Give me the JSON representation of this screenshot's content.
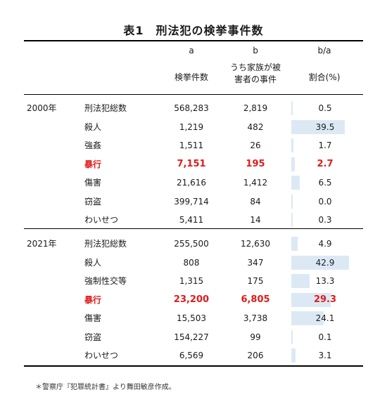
{
  "title": "表1　刑法犯の検挙事件数",
  "headers": {
    "col_a_letter": "a",
    "col_b_letter": "b",
    "col_ratio_letter": "b/a",
    "col_a_label": "検挙件数",
    "col_b_label_1": "うち家族が被",
    "col_b_label_2": "害者の事件",
    "col_ratio_label": "割合(%)"
  },
  "colors": {
    "bar": "#dce9f5",
    "highlight": "#e21a1a"
  },
  "groups": [
    {
      "year": "2000年",
      "rows": [
        {
          "label": "刑法犯総数",
          "a": "568,283",
          "b": "2,819",
          "ratio": 0.5,
          "ratio_text": "0.5",
          "highlight": false
        },
        {
          "label": "殺人",
          "a": "1,219",
          "b": "482",
          "ratio": 39.5,
          "ratio_text": "39.5",
          "highlight": false
        },
        {
          "label": "強姦",
          "a": "1,511",
          "b": "26",
          "ratio": 1.7,
          "ratio_text": "1.7",
          "highlight": false
        },
        {
          "label": "暴行",
          "a": "7,151",
          "b": "195",
          "ratio": 2.7,
          "ratio_text": "2.7",
          "highlight": true
        },
        {
          "label": "傷害",
          "a": "21,616",
          "b": "1,412",
          "ratio": 6.5,
          "ratio_text": "6.5",
          "highlight": false
        },
        {
          "label": "窃盗",
          "a": "399,714",
          "b": "84",
          "ratio": 0.0,
          "ratio_text": "0.0",
          "highlight": false
        },
        {
          "label": "わいせつ",
          "a": "5,411",
          "b": "14",
          "ratio": 0.3,
          "ratio_text": "0.3",
          "highlight": false
        }
      ]
    },
    {
      "year": "2021年",
      "rows": [
        {
          "label": "刑法犯総数",
          "a": "255,500",
          "b": "12,630",
          "ratio": 4.9,
          "ratio_text": "4.9",
          "highlight": false
        },
        {
          "label": "殺人",
          "a": "808",
          "b": "347",
          "ratio": 42.9,
          "ratio_text": "42.9",
          "highlight": false
        },
        {
          "label": "強制性交等",
          "a": "1,315",
          "b": "175",
          "ratio": 13.3,
          "ratio_text": "13.3",
          "highlight": false
        },
        {
          "label": "暴行",
          "a": "23,200",
          "b": "6,805",
          "ratio": 29.3,
          "ratio_text": "29.3",
          "highlight": true
        },
        {
          "label": "傷害",
          "a": "15,503",
          "b": "3,738",
          "ratio": 24.1,
          "ratio_text": "24.1",
          "highlight": false
        },
        {
          "label": "窃盗",
          "a": "154,227",
          "b": "99",
          "ratio": 0.1,
          "ratio_text": "0.1",
          "highlight": false
        },
        {
          "label": "わいせつ",
          "a": "6,569",
          "b": "206",
          "ratio": 3.1,
          "ratio_text": "3.1",
          "highlight": false
        }
      ]
    }
  ],
  "footnote": "＊警察庁『犯罪統計書』より舞田敏彦作成。"
}
